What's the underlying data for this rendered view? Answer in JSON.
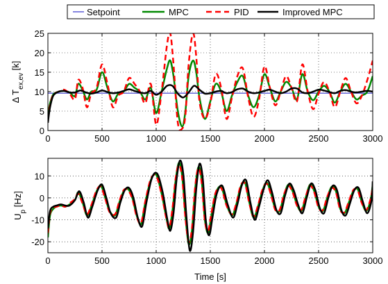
{
  "legend": {
    "placement": "top",
    "items": [
      {
        "label": "Setpoint",
        "color": "#3333cc",
        "style": "solid"
      },
      {
        "label": "MPC",
        "color": "#008800",
        "style": "solid"
      },
      {
        "label": "PID",
        "color": "#ff0000",
        "style": "dashed"
      },
      {
        "label": "Improved MPC",
        "color": "#000000",
        "style": "solid"
      }
    ]
  },
  "chart_data": [
    {
      "type": "line",
      "ylabel": "Δ T_ex,ev [k]",
      "xlabel": "",
      "xlim": [
        0,
        3000
      ],
      "ylim": [
        0,
        25
      ],
      "xticks": [
        0,
        500,
        1000,
        1500,
        2000,
        2500,
        3000
      ],
      "yticks": [
        0,
        5,
        10,
        15,
        20,
        25
      ],
      "grid": true,
      "series": [
        {
          "name": "Setpoint",
          "color": "#3333cc",
          "dash": "",
          "x": [
            0,
            3000
          ],
          "y": [
            9.6,
            9.6
          ]
        },
        {
          "name": "MPC",
          "color": "#008800",
          "dash": "",
          "x": [
            0,
            20,
            50,
            100,
            150,
            200,
            250,
            280,
            320,
            360,
            400,
            450,
            500,
            550,
            600,
            650,
            700,
            750,
            800,
            850,
            900,
            950,
            1000,
            1050,
            1100,
            1130,
            1160,
            1200,
            1240,
            1270,
            1300,
            1340,
            1370,
            1400,
            1450,
            1500,
            1550,
            1600,
            1650,
            1700,
            1750,
            1800,
            1850,
            1900,
            1950,
            2000,
            2050,
            2100,
            2150,
            2200,
            2250,
            2300,
            2350,
            2400,
            2450,
            2500,
            2550,
            2600,
            2650,
            2700,
            2750,
            2800,
            2850,
            2900,
            2950,
            3000
          ],
          "y": [
            4,
            7,
            9.3,
            10,
            10.2,
            9.8,
            8.9,
            12,
            10.5,
            8,
            10,
            10.5,
            15,
            11,
            7.5,
            9.5,
            10,
            12,
            11,
            10,
            8,
            11,
            4.5,
            10,
            16,
            18,
            14,
            5,
            1,
            5,
            14,
            18,
            15,
            8.5,
            3,
            7.5,
            12,
            10,
            5,
            9,
            12.5,
            14,
            9,
            6,
            9,
            14.5,
            11,
            7.5,
            10,
            12.5,
            11,
            8,
            14.5,
            10,
            7.8,
            10,
            11.5,
            10,
            7.2,
            10,
            12,
            10,
            8,
            9,
            10,
            14
          ]
        },
        {
          "name": "PID",
          "color": "#ff0000",
          "dash": "8,5",
          "x": [
            0,
            20,
            50,
            100,
            150,
            200,
            250,
            280,
            320,
            360,
            400,
            450,
            500,
            550,
            600,
            650,
            700,
            750,
            800,
            850,
            900,
            950,
            1000,
            1050,
            1100,
            1130,
            1160,
            1200,
            1240,
            1270,
            1300,
            1340,
            1370,
            1400,
            1450,
            1500,
            1550,
            1600,
            1650,
            1700,
            1750,
            1800,
            1850,
            1900,
            1950,
            2000,
            2050,
            2100,
            2150,
            2200,
            2250,
            2300,
            2350,
            2400,
            2450,
            2500,
            2550,
            2600,
            2650,
            2700,
            2750,
            2800,
            2850,
            2900,
            2950,
            3000
          ],
          "y": [
            3,
            6.5,
            9.2,
            10,
            10.5,
            9.5,
            8,
            13,
            11,
            6,
            9.5,
            11,
            17,
            12,
            6,
            9,
            10,
            13.5,
            12,
            10,
            7,
            12,
            1.5,
            10,
            22,
            25,
            17,
            2,
            0.5,
            4,
            17,
            25,
            19,
            7.5,
            3,
            7,
            14.5,
            11,
            3,
            8.5,
            14,
            16,
            8.5,
            3.5,
            8,
            16.5,
            11,
            6.5,
            10,
            14,
            11,
            7.5,
            17,
            10,
            5.5,
            9.5,
            12.5,
            10,
            6,
            10,
            13.5,
            10,
            7,
            9,
            13,
            18
          ]
        },
        {
          "name": "Improved MPC",
          "color": "#000000",
          "dash": "",
          "x": [
            0,
            20,
            50,
            100,
            150,
            200,
            250,
            300,
            350,
            400,
            450,
            500,
            550,
            600,
            650,
            700,
            750,
            800,
            850,
            900,
            950,
            1000,
            1050,
            1100,
            1150,
            1200,
            1250,
            1300,
            1350,
            1400,
            1450,
            1500,
            1550,
            1600,
            1650,
            1700,
            1750,
            1800,
            1850,
            1900,
            1950,
            2000,
            2050,
            2100,
            2150,
            2200,
            2250,
            2300,
            2350,
            2400,
            2450,
            2500,
            2550,
            2600,
            2650,
            2700,
            2750,
            2800,
            2850,
            2900,
            2950,
            3000
          ],
          "y": [
            2,
            6,
            9,
            10,
            10.2,
            9.8,
            9.8,
            10.3,
            9.8,
            9.5,
            9.8,
            10.3,
            9.9,
            9.6,
            9.8,
            10.2,
            10.6,
            10.2,
            9.8,
            9.6,
            10.2,
            9.2,
            10,
            11.5,
            11.5,
            9.5,
            8.5,
            9.8,
            11.5,
            10.5,
            9.5,
            9.6,
            10,
            10.2,
            9.6,
            9.9,
            10.6,
            10.8,
            10,
            9.6,
            9.8,
            10.2,
            10.5,
            10,
            9.6,
            10,
            10.8,
            10.8,
            9.8,
            9.6,
            10,
            10.5,
            10.3,
            9.9,
            9.6,
            10.2,
            10.4,
            10,
            9.8,
            10,
            10.2,
            10
          ]
        }
      ]
    },
    {
      "type": "line",
      "ylabel": "U_p [Hz]",
      "xlabel": "Time [s]",
      "xlim": [
        0,
        3000
      ],
      "ylim": [
        -25,
        18
      ],
      "xticks": [
        0,
        500,
        1000,
        1500,
        2000,
        2500,
        3000
      ],
      "yticks": [
        -20,
        -10,
        0,
        10
      ],
      "grid": true,
      "series": [
        {
          "name": "MPC",
          "color": "#008800",
          "dash": "",
          "x": [
            0,
            20,
            50,
            80,
            120,
            160,
            200,
            250,
            280,
            320,
            360,
            400,
            450,
            490,
            530,
            570,
            620,
            660,
            700,
            740,
            780,
            820,
            860,
            900,
            950,
            1000,
            1050,
            1090,
            1120,
            1150,
            1180,
            1210,
            1240,
            1270,
            1300,
            1330,
            1360,
            1390,
            1420,
            1450,
            1480,
            1510,
            1550,
            1600,
            1650,
            1700,
            1740,
            1780,
            1820,
            1860,
            1900,
            1940,
            1980,
            2020,
            2060,
            2100,
            2140,
            2180,
            2220,
            2260,
            2300,
            2340,
            2380,
            2420,
            2460,
            2500,
            2540,
            2580,
            2620,
            2660,
            2700,
            2740,
            2780,
            2820,
            2860,
            2900,
            2940,
            2980,
            3000
          ],
          "y": [
            -18,
            -8,
            -5,
            -4,
            -3.5,
            -4,
            -3,
            -1,
            2.5,
            -2,
            -8,
            -4,
            3,
            5.5,
            0,
            -6,
            -8,
            -2,
            3,
            4,
            0,
            -8,
            -12,
            -2,
            8,
            10.5,
            2,
            -8,
            -14,
            -6,
            8,
            16,
            10,
            -8,
            -21,
            -15,
            4,
            14,
            8,
            -10,
            -16,
            -8,
            2,
            5,
            -3,
            -8,
            -3,
            5,
            7,
            -2,
            -9,
            -4,
            3,
            7,
            2,
            -5,
            -6,
            1,
            6,
            3,
            -3,
            -6,
            0,
            6,
            3,
            -4,
            -6,
            0,
            5,
            3,
            -5,
            -7,
            -2,
            3,
            4,
            -2,
            -6,
            -1,
            6
          ]
        },
        {
          "name": "PID",
          "color": "#ff0000",
          "dash": "8,5",
          "x": [
            0,
            20,
            50,
            80,
            120,
            160,
            200,
            250,
            280,
            320,
            360,
            400,
            450,
            490,
            530,
            570,
            620,
            660,
            700,
            740,
            780,
            820,
            860,
            900,
            950,
            1000,
            1050,
            1090,
            1120,
            1150,
            1180,
            1210,
            1240,
            1270,
            1300,
            1330,
            1360,
            1390,
            1420,
            1450,
            1480,
            1510,
            1550,
            1600,
            1650,
            1700,
            1740,
            1780,
            1820,
            1860,
            1900,
            1940,
            1980,
            2020,
            2060,
            2100,
            2140,
            2180,
            2220,
            2260,
            2300,
            2340,
            2380,
            2420,
            2460,
            2500,
            2540,
            2580,
            2620,
            2660,
            2700,
            2740,
            2780,
            2820,
            2860,
            2900,
            2940,
            2980,
            3000
          ],
          "y": [
            -16,
            -7,
            -4.5,
            -4,
            -3.5,
            -4,
            -2.5,
            -0.5,
            2,
            -2.5,
            -7.5,
            -3.5,
            3.5,
            5,
            -0.5,
            -6.5,
            -7.5,
            -1.5,
            3.5,
            3.5,
            -0.5,
            -8.5,
            -11.5,
            -1.5,
            8.5,
            10,
            1.5,
            -8.5,
            -13.5,
            -5,
            9,
            15,
            9,
            -9,
            -20,
            -14,
            5,
            13.5,
            7,
            -10.5,
            -15,
            -7,
            2.5,
            4.5,
            -3.5,
            -7.5,
            -2.5,
            5.5,
            6.5,
            -2.5,
            -8.5,
            -3.5,
            3.5,
            6.5,
            1.5,
            -5.5,
            -5.5,
            1.5,
            5.5,
            2.5,
            -3.5,
            -5.5,
            0.5,
            5.5,
            2.5,
            -4.5,
            -5.5,
            0.5,
            4.5,
            2.5,
            -5.5,
            -6.5,
            -1.5,
            3.5,
            3.5,
            -2.5,
            -5.5,
            -0.5,
            5
          ]
        },
        {
          "name": "Improved MPC",
          "color": "#000000",
          "dash": "",
          "x": [
            0,
            20,
            50,
            80,
            120,
            160,
            200,
            250,
            290,
            330,
            370,
            410,
            460,
            500,
            540,
            580,
            630,
            670,
            710,
            750,
            790,
            830,
            870,
            910,
            960,
            1010,
            1060,
            1100,
            1130,
            1160,
            1190,
            1220,
            1250,
            1280,
            1310,
            1340,
            1370,
            1400,
            1430,
            1460,
            1490,
            1520,
            1560,
            1610,
            1660,
            1710,
            1750,
            1790,
            1830,
            1870,
            1910,
            1950,
            1990,
            2030,
            2070,
            2110,
            2150,
            2190,
            2230,
            2270,
            2310,
            2350,
            2390,
            2430,
            2470,
            2510,
            2550,
            2590,
            2630,
            2670,
            2710,
            2750,
            2790,
            2830,
            2870,
            2910,
            2950,
            2990,
            3000
          ],
          "y": [
            -14,
            -6,
            -4,
            -3.5,
            -3,
            -3.5,
            -3.5,
            -1,
            3,
            -2,
            -9,
            -4,
            3.5,
            6,
            0,
            -7,
            -9,
            -2,
            3.5,
            4.5,
            0,
            -9,
            -13,
            -2,
            9,
            11,
            2.5,
            -9,
            -15,
            -7,
            9,
            17,
            11,
            -9,
            -24,
            -16,
            4,
            15.5,
            9,
            -11,
            -17,
            -9,
            2,
            5.5,
            -3,
            -9,
            -3,
            5.5,
            8,
            -2,
            -10,
            -4,
            3.5,
            8,
            2.5,
            -5.5,
            -7,
            1,
            6.5,
            3.5,
            -3,
            -7,
            0,
            6.5,
            3.5,
            -4.5,
            -7,
            0,
            5.5,
            3.5,
            -5.5,
            -8,
            -2.5,
            3.5,
            4.5,
            -2,
            -7,
            -1,
            7.5
          ]
        }
      ]
    }
  ]
}
